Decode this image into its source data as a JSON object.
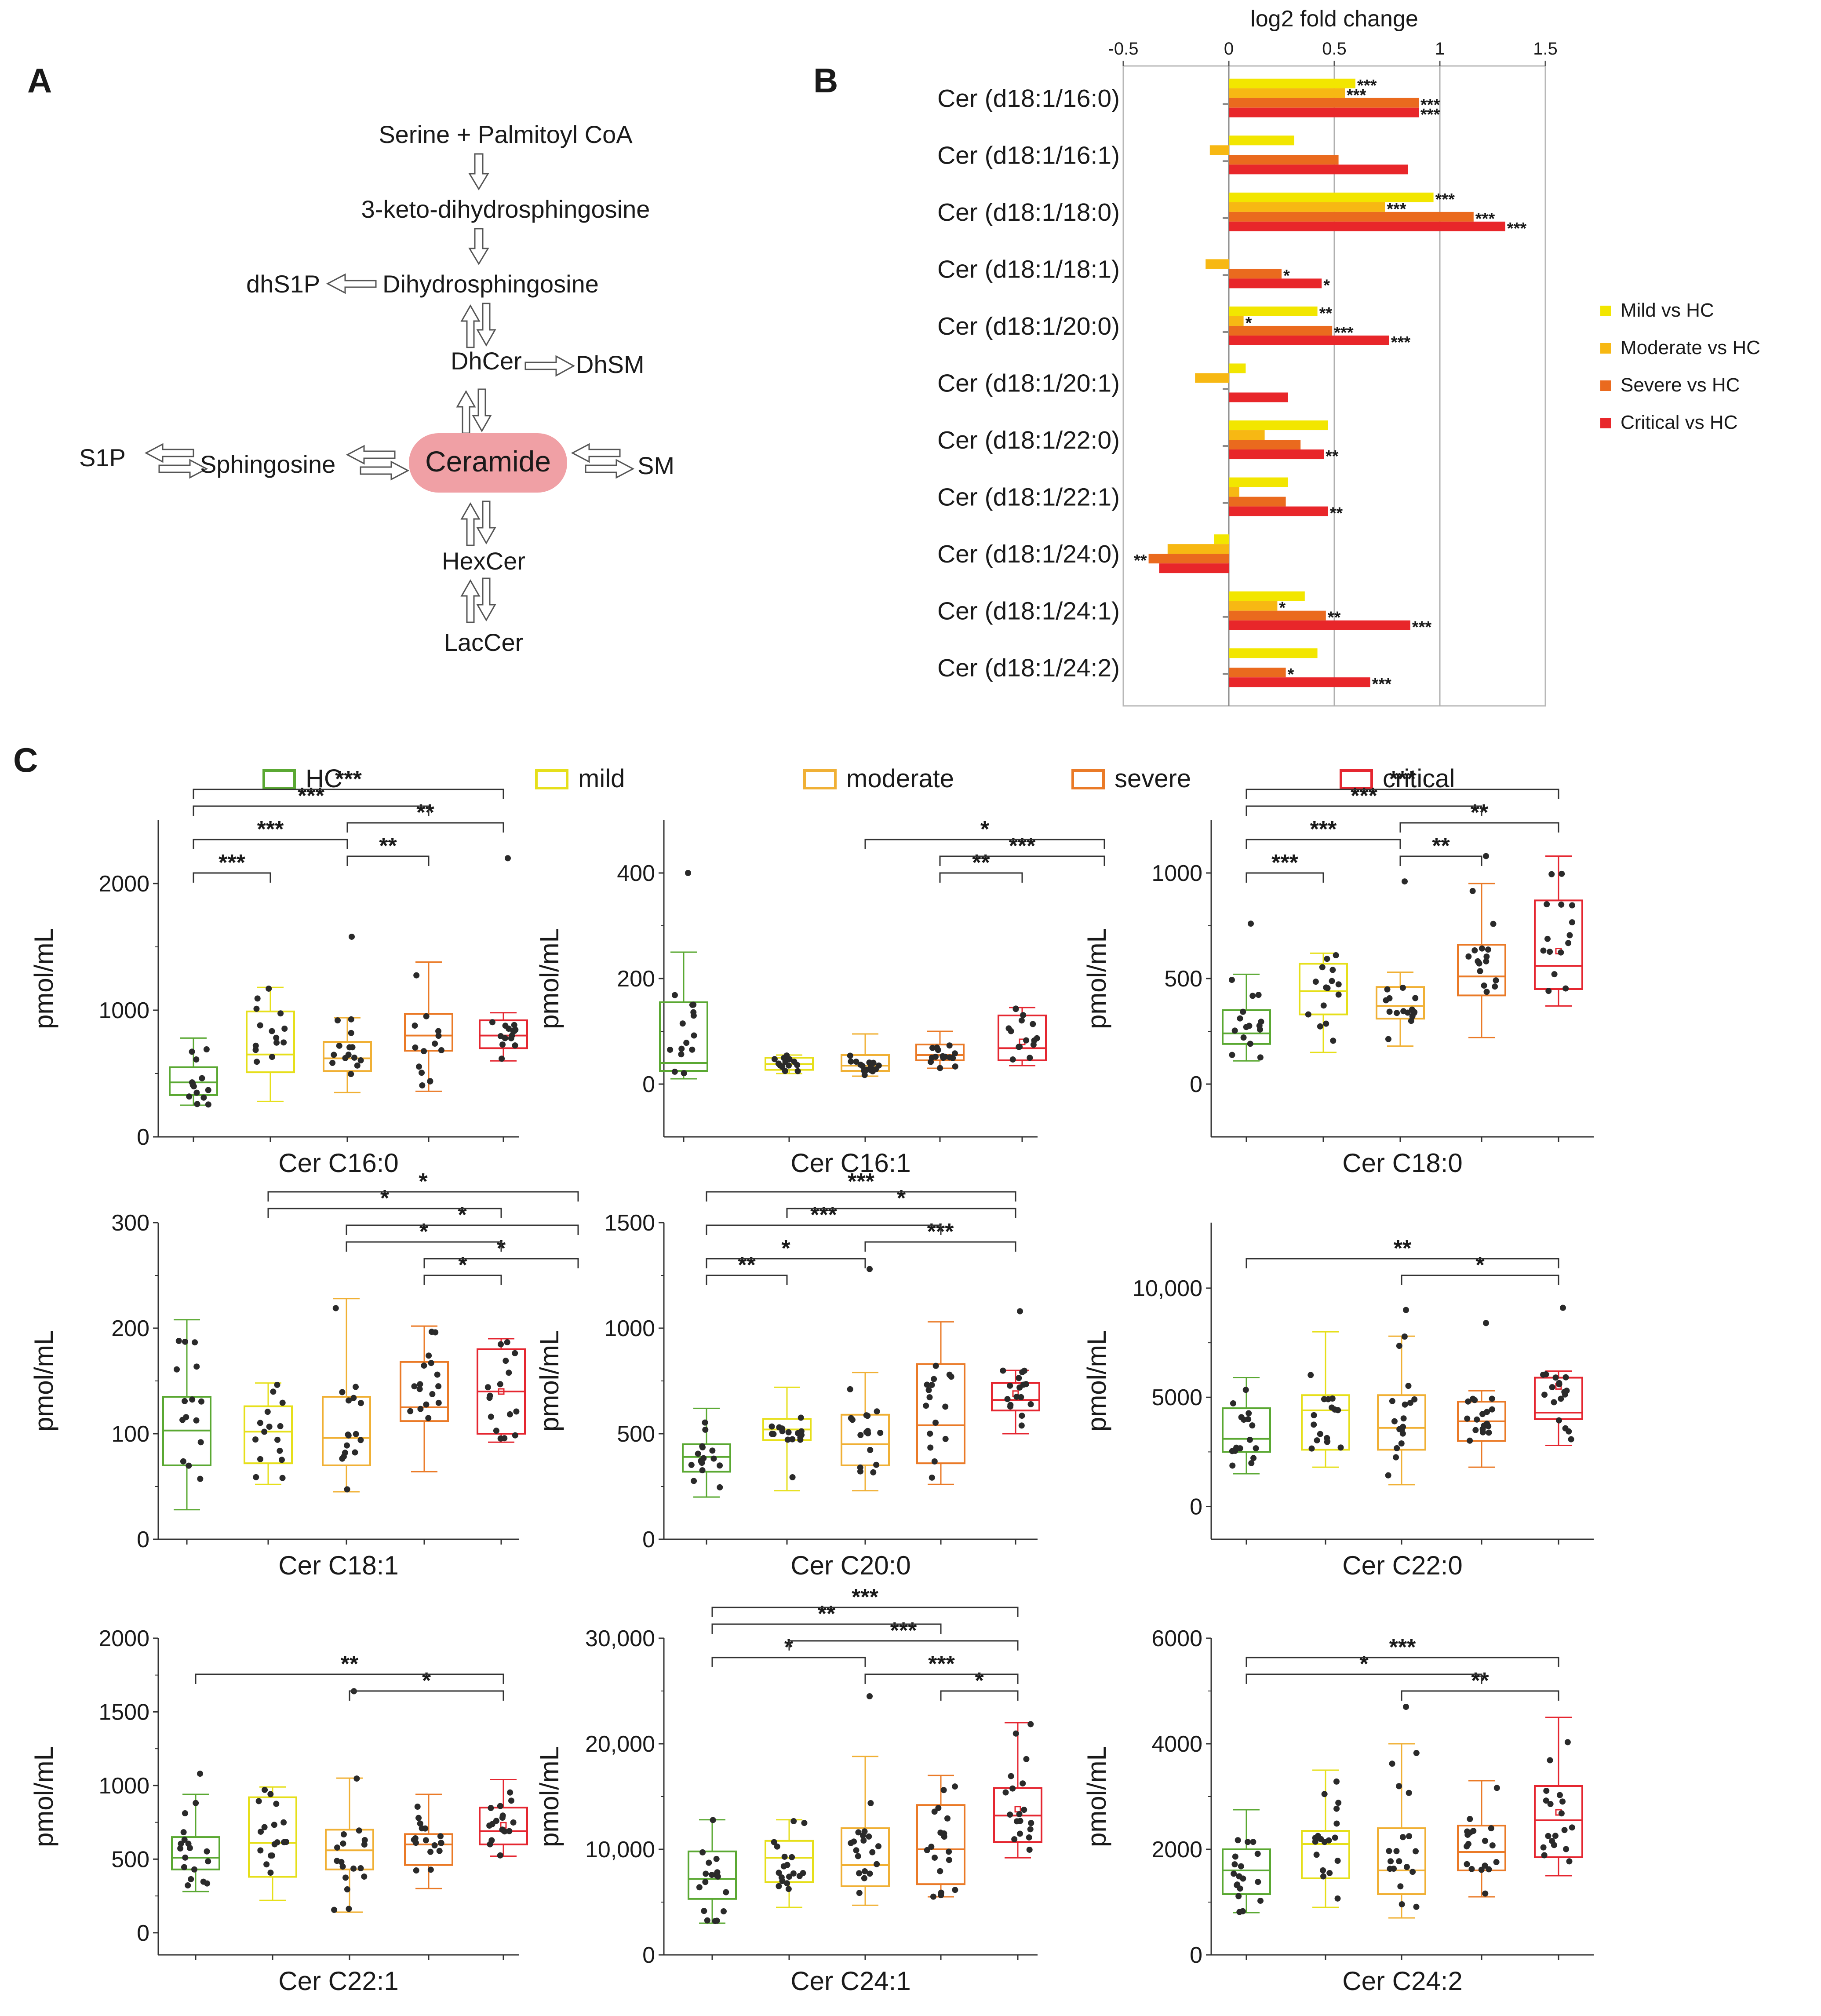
{
  "panel_labels": {
    "a": "A",
    "b": "B",
    "c": "C"
  },
  "pathway": {
    "serine": "Serine + Palmitoyl CoA",
    "keto": "3-keto-dihydrosphingosine",
    "dhs1p": "dhS1P",
    "dihydro": "Dihydrosphingosine",
    "dhcer": "DhCer",
    "dhsm": "DhSM",
    "s1p": "S1P",
    "sphingosine": "Sphingosine",
    "ceramide": "Ceramide",
    "sm": "SM",
    "hexcer": "HexCer",
    "laccer": "LacCer",
    "ceramide_color": "#f0a0a5"
  },
  "chart_data": [
    {
      "type": "bar",
      "orientation": "horizontal",
      "title": "",
      "xlabel": "log2 fold change",
      "xlim": [
        -0.5,
        1.5
      ],
      "xticks": [
        "-0.5",
        "0",
        "0.5",
        "1",
        "1.5"
      ],
      "xtick_values": [
        -0.5,
        0,
        0.5,
        1,
        1.5
      ],
      "categories": [
        "Cer (d18:1/16:0)",
        "Cer (d18:1/16:1)",
        "Cer (d18:1/18:0)",
        "Cer (d18:1/18:1)",
        "Cer (d18:1/20:0)",
        "Cer (d18:1/20:1)",
        "Cer (d18:1/22:0)",
        "Cer (d18:1/22:1)",
        "Cer (d18:1/24:0)",
        "Cer (d18:1/24:1)",
        "Cer (d18:1/24:2)"
      ],
      "series": [
        {
          "name": "Mild vs HC",
          "color": "#f2e600",
          "values": [
            0.6,
            0.31,
            0.97,
            0.0,
            0.42,
            0.08,
            0.47,
            0.28,
            -0.07,
            0.36,
            0.42
          ],
          "stars": [
            "***",
            "",
            "***",
            "",
            "**",
            "",
            "",
            "",
            "",
            "",
            ""
          ]
        },
        {
          "name": "Moderate vs HC",
          "color": "#f7b813",
          "values": [
            0.55,
            -0.09,
            0.74,
            -0.11,
            0.07,
            -0.16,
            0.17,
            0.05,
            -0.29,
            0.23,
            0.0
          ],
          "stars": [
            "***",
            "",
            "***",
            "",
            "*",
            "",
            "",
            "",
            "",
            "*",
            ""
          ]
        },
        {
          "name": "Severe vs HC",
          "color": "#ea6a1e",
          "values": [
            0.9,
            0.52,
            1.16,
            0.25,
            0.49,
            0.0,
            0.34,
            0.27,
            -0.38,
            0.46,
            0.27
          ],
          "stars": [
            "***",
            "",
            "***",
            "*",
            "***",
            "",
            "",
            "",
            "**",
            "**",
            "*"
          ]
        },
        {
          "name": "Critical vs HC",
          "color": "#e8262a",
          "values": [
            0.9,
            0.85,
            1.31,
            0.44,
            0.76,
            0.28,
            0.45,
            0.47,
            -0.33,
            0.86,
            0.67
          ],
          "stars": [
            "***",
            "",
            "***",
            "*",
            "***",
            "",
            "**",
            "**",
            "",
            "***",
            "***"
          ]
        }
      ]
    },
    {
      "type": "box",
      "title": "Cer C16:0",
      "ylabel": "pmol/mL",
      "groups": [
        "HC",
        "mild",
        "moderate",
        "severe",
        "critical"
      ],
      "ylim": [
        0,
        2500
      ],
      "yticks": [
        "0",
        "1000",
        "2000"
      ],
      "ytick_values": [
        0,
        1000,
        2000
      ],
      "boxes": [
        {
          "min": 250,
          "q1": 330,
          "median": 430,
          "q3": 550,
          "max": 780,
          "mean": null
        },
        {
          "min": 280,
          "q1": 510,
          "median": 650,
          "q3": 990,
          "max": 1180,
          "mean": null
        },
        {
          "min": 350,
          "q1": 520,
          "median": 620,
          "q3": 750,
          "max": 940,
          "mean": null
        },
        {
          "min": 360,
          "q1": 680,
          "median": 800,
          "q3": 970,
          "max": 1380,
          "mean": null
        },
        {
          "min": 600,
          "q1": 700,
          "median": 800,
          "q3": 920,
          "max": 980,
          "mean": null
        }
      ],
      "outliers": [
        [],
        [],
        [
          1580
        ],
        [],
        [
          2200
        ]
      ],
      "brackets": [
        {
          "from": 0,
          "to": 1,
          "label": "***"
        },
        {
          "from": 0,
          "to": 2,
          "label": "***"
        },
        {
          "from": 0,
          "to": 3,
          "label": "***"
        },
        {
          "from": 0,
          "to": 4,
          "label": "***"
        },
        {
          "from": 2,
          "to": 3,
          "label": "**"
        },
        {
          "from": 2,
          "to": 4,
          "label": "**"
        }
      ]
    },
    {
      "type": "box",
      "title": "Cer C16:1",
      "ylabel": "pmol/mL",
      "groups": [
        "HC",
        "mild",
        "moderate",
        "severe",
        "critical"
      ],
      "ylim": [
        -100,
        500
      ],
      "yticks": [
        "0",
        "200",
        "400"
      ],
      "ytick_values": [
        0,
        200,
        400
      ],
      "boxes": [
        {
          "min": 10,
          "q1": 25,
          "median": 40,
          "q3": 155,
          "max": 250,
          "mean": null
        },
        {
          "min": 20,
          "q1": 27,
          "median": 38,
          "q3": 50,
          "max": 55,
          "mean": null
        },
        {
          "min": 15,
          "q1": 25,
          "median": 35,
          "q3": 55,
          "max": 95,
          "mean": null
        },
        {
          "min": 30,
          "q1": 45,
          "median": 55,
          "q3": 75,
          "max": 100,
          "mean": null
        },
        {
          "min": 35,
          "q1": 45,
          "median": 68,
          "q3": 130,
          "max": 145,
          "mean": 80
        }
      ],
      "outliers": [
        [
          400
        ],
        [],
        [],
        [],
        []
      ],
      "brackets": [
        {
          "from": 3,
          "to": 4,
          "label": "**"
        },
        {
          "from": 3,
          "to": 5,
          "label": "***"
        },
        {
          "from": 2,
          "to": 5,
          "label": "*"
        }
      ]
    },
    {
      "type": "box",
      "title": "Cer C18:0",
      "ylabel": "pmol/mL",
      "groups": [
        "HC",
        "mild",
        "moderate",
        "severe",
        "critical"
      ],
      "ylim": [
        -250,
        1250
      ],
      "yticks": [
        "0",
        "500",
        "1000"
      ],
      "ytick_values": [
        0,
        500,
        1000
      ],
      "boxes": [
        {
          "min": 110,
          "q1": 190,
          "median": 240,
          "q3": 350,
          "max": 520,
          "mean": null
        },
        {
          "min": 150,
          "q1": 330,
          "median": 440,
          "q3": 570,
          "max": 620,
          "mean": null
        },
        {
          "min": 180,
          "q1": 310,
          "median": 370,
          "q3": 460,
          "max": 530,
          "mean": null
        },
        {
          "min": 220,
          "q1": 420,
          "median": 510,
          "q3": 660,
          "max": 950,
          "mean": null
        },
        {
          "min": 370,
          "q1": 450,
          "median": 560,
          "q3": 870,
          "max": 1080,
          "mean": 630
        }
      ],
      "outliers": [
        [
          760
        ],
        [],
        [
          960
        ],
        [
          1080
        ],
        []
      ],
      "brackets": [
        {
          "from": 0,
          "to": 1,
          "label": "***"
        },
        {
          "from": 0,
          "to": 2,
          "label": "***"
        },
        {
          "from": 0,
          "to": 3,
          "label": "***"
        },
        {
          "from": 0,
          "to": 4,
          "label": "***"
        },
        {
          "from": 2,
          "to": 3,
          "label": "**"
        },
        {
          "from": 2,
          "to": 4,
          "label": "**"
        }
      ]
    },
    {
      "type": "box",
      "title": "Cer C18:1",
      "ylabel": "pmol/mL",
      "groups": [
        "HC",
        "mild",
        "moderate",
        "severe",
        "critical"
      ],
      "ylim": [
        0,
        300
      ],
      "yticks": [
        "0",
        "100",
        "200",
        "300"
      ],
      "ytick_values": [
        0,
        100,
        200,
        300
      ],
      "boxes": [
        {
          "min": 28,
          "q1": 70,
          "median": 103,
          "q3": 135,
          "max": 208,
          "mean": null
        },
        {
          "min": 52,
          "q1": 72,
          "median": 102,
          "q3": 126,
          "max": 148,
          "mean": null
        },
        {
          "min": 45,
          "q1": 70,
          "median": 96,
          "q3": 135,
          "max": 228,
          "mean": null
        },
        {
          "min": 64,
          "q1": 112,
          "median": 125,
          "q3": 168,
          "max": 202,
          "mean": null
        },
        {
          "min": 92,
          "q1": 100,
          "median": 140,
          "q3": 180,
          "max": 190,
          "mean": 140
        }
      ],
      "outliers": [
        [],
        [],
        [],
        [],
        []
      ],
      "brackets": [
        {
          "from": 3,
          "to": 4,
          "label": "*"
        },
        {
          "from": 3,
          "to": 5,
          "label": "*"
        },
        {
          "from": 2,
          "to": 4,
          "label": "*"
        },
        {
          "from": 2,
          "to": 5,
          "label": "*"
        },
        {
          "from": 1,
          "to": 4,
          "label": "*"
        },
        {
          "from": 1,
          "to": 5,
          "label": "*"
        }
      ]
    },
    {
      "type": "box",
      "title": "Cer C20:0",
      "ylabel": "pmol/mL",
      "groups": [
        "HC",
        "mild",
        "moderate",
        "severe",
        "critical"
      ],
      "ylim": [
        0,
        1500
      ],
      "yticks": [
        "0",
        "500",
        "1000",
        "1500"
      ],
      "ytick_values": [
        0,
        500,
        1000,
        1500
      ],
      "boxes": [
        {
          "min": 200,
          "q1": 320,
          "median": 390,
          "q3": 450,
          "max": 620,
          "mean": null
        },
        {
          "min": 230,
          "q1": 470,
          "median": 520,
          "q3": 570,
          "max": 720,
          "mean": null
        },
        {
          "min": 230,
          "q1": 350,
          "median": 450,
          "q3": 590,
          "max": 790,
          "mean": null
        },
        {
          "min": 260,
          "q1": 360,
          "median": 540,
          "q3": 830,
          "max": 1030,
          "mean": null
        },
        {
          "min": 500,
          "q1": 610,
          "median": 660,
          "q3": 740,
          "max": 800,
          "mean": 690
        }
      ],
      "outliers": [
        [],
        [],
        [
          1280
        ],
        [],
        [
          1080
        ]
      ],
      "brackets": [
        {
          "from": 0,
          "to": 1,
          "label": "**"
        },
        {
          "from": 0,
          "to": 2,
          "label": "*"
        },
        {
          "from": 0,
          "to": 3,
          "label": "***"
        },
        {
          "from": 0,
          "to": 4,
          "label": "***"
        },
        {
          "from": 1,
          "to": 4,
          "label": "*"
        },
        {
          "from": 2,
          "to": 4,
          "label": "***"
        }
      ]
    },
    {
      "type": "box",
      "title": "Cer C22:0",
      "ylabel": "pmol/mL",
      "groups": [
        "HC",
        "mild",
        "moderate",
        "severe",
        "critical"
      ],
      "ylim": [
        -1500,
        13000
      ],
      "yticks": [
        "0",
        "5000",
        "10,000"
      ],
      "ytick_values": [
        0,
        5000,
        10000
      ],
      "boxes": [
        {
          "min": 1500,
          "q1": 2500,
          "median": 3100,
          "q3": 4500,
          "max": 5900,
          "mean": null
        },
        {
          "min": 1800,
          "q1": 2600,
          "median": 4400,
          "q3": 5100,
          "max": 8000,
          "mean": null
        },
        {
          "min": 1000,
          "q1": 2600,
          "median": 3600,
          "q3": 5100,
          "max": 7800,
          "mean": null
        },
        {
          "min": 1800,
          "q1": 3000,
          "median": 3900,
          "q3": 4800,
          "max": 5300,
          "mean": null
        },
        {
          "min": 2800,
          "q1": 4000,
          "median": 4300,
          "q3": 5900,
          "max": 6200,
          "mean": 5500
        }
      ],
      "outliers": [
        [],
        [],
        [
          9000
        ],
        [
          8400
        ],
        [
          9100
        ]
      ],
      "brackets": [
        {
          "from": 0,
          "to": 4,
          "label": "**"
        },
        {
          "from": 2,
          "to": 4,
          "label": "*"
        }
      ]
    },
    {
      "type": "box",
      "title": "Cer C22:1",
      "ylabel": "pmol/mL",
      "groups": [
        "HC",
        "mild",
        "moderate",
        "severe",
        "critical"
      ],
      "ylim": [
        -150,
        2000
      ],
      "yticks": [
        "0",
        "500",
        "1000",
        "1500",
        "2000"
      ],
      "ytick_values": [
        0,
        500,
        1000,
        1500,
        2000
      ],
      "boxes": [
        {
          "min": 280,
          "q1": 430,
          "median": 510,
          "q3": 650,
          "max": 940,
          "mean": null
        },
        {
          "min": 220,
          "q1": 380,
          "median": 610,
          "q3": 920,
          "max": 990,
          "mean": null
        },
        {
          "min": 140,
          "q1": 430,
          "median": 560,
          "q3": 700,
          "max": 1050,
          "mean": null
        },
        {
          "min": 300,
          "q1": 460,
          "median": 600,
          "q3": 670,
          "max": 940,
          "mean": null
        },
        {
          "min": 520,
          "q1": 600,
          "median": 690,
          "q3": 850,
          "max": 1040,
          "mean": 730
        }
      ],
      "outliers": [
        [
          1080
        ],
        [],
        [
          1640
        ],
        [],
        []
      ],
      "brackets": [
        {
          "from": 0,
          "to": 4,
          "label": "**"
        },
        {
          "from": 2,
          "to": 4,
          "label": "*"
        }
      ]
    },
    {
      "type": "box",
      "title": "Cer C24:1",
      "ylabel": "pmol/mL",
      "groups": [
        "HC",
        "mild",
        "moderate",
        "severe",
        "critical"
      ],
      "ylim": [
        0,
        30000
      ],
      "yticks": [
        "0",
        "10,000",
        "20,000",
        "30,000"
      ],
      "ytick_values": [
        0,
        10000,
        20000,
        30000
      ],
      "boxes": [
        {
          "min": 3000,
          "q1": 5300,
          "median": 7200,
          "q3": 9800,
          "max": 12800,
          "mean": null
        },
        {
          "min": 4500,
          "q1": 6900,
          "median": 9200,
          "q3": 10800,
          "max": 12800,
          "mean": null
        },
        {
          "min": 4700,
          "q1": 6500,
          "median": 8500,
          "q3": 12000,
          "max": 18800,
          "mean": null
        },
        {
          "min": 5500,
          "q1": 6700,
          "median": 10000,
          "q3": 14200,
          "max": 17000,
          "mean": null
        },
        {
          "min": 9200,
          "q1": 10700,
          "median": 13200,
          "q3": 15800,
          "max": 22000,
          "mean": 13800
        }
      ],
      "outliers": [
        [],
        [],
        [
          24500
        ],
        [],
        []
      ],
      "brackets": [
        {
          "from": 3,
          "to": 4,
          "label": "*"
        },
        {
          "from": 2,
          "to": 4,
          "label": "***"
        },
        {
          "from": 1,
          "to": 4,
          "label": "***"
        },
        {
          "from": 0,
          "to": 2,
          "label": "*"
        },
        {
          "from": 0,
          "to": 3,
          "label": "**"
        },
        {
          "from": 0,
          "to": 4,
          "label": "***"
        }
      ]
    },
    {
      "type": "box",
      "title": "Cer C24:2",
      "ylabel": "pmol/mL",
      "groups": [
        "HC",
        "mild",
        "moderate",
        "severe",
        "critical"
      ],
      "ylim": [
        0,
        6000
      ],
      "yticks": [
        "0",
        "2000",
        "4000",
        "6000"
      ],
      "ytick_values": [
        0,
        2000,
        4000,
        6000
      ],
      "boxes": [
        {
          "min": 800,
          "q1": 1150,
          "median": 1600,
          "q3": 2000,
          "max": 2750,
          "mean": null
        },
        {
          "min": 900,
          "q1": 1450,
          "median": 2100,
          "q3": 2350,
          "max": 3500,
          "mean": null
        },
        {
          "min": 700,
          "q1": 1150,
          "median": 1600,
          "q3": 2400,
          "max": 4000,
          "mean": null
        },
        {
          "min": 1100,
          "q1": 1600,
          "median": 1950,
          "q3": 2450,
          "max": 3300,
          "mean": null
        },
        {
          "min": 1500,
          "q1": 1850,
          "median": 2550,
          "q3": 3200,
          "max": 4500,
          "mean": 2700
        }
      ],
      "outliers": [
        [],
        [],
        [
          4700
        ],
        [],
        []
      ],
      "brackets": [
        {
          "from": 0,
          "to": 3,
          "label": "*"
        },
        {
          "from": 0,
          "to": 4,
          "label": "***"
        },
        {
          "from": 2,
          "to": 4,
          "label": "**"
        }
      ]
    }
  ],
  "legend_c": [
    {
      "label": "HC",
      "color": "#5aa832"
    },
    {
      "label": "mild",
      "color": "#e6df1a"
    },
    {
      "label": "moderate",
      "color": "#f0b035"
    },
    {
      "label": "severe",
      "color": "#ea7a27"
    },
    {
      "label": "critical",
      "color": "#e52630"
    }
  ]
}
